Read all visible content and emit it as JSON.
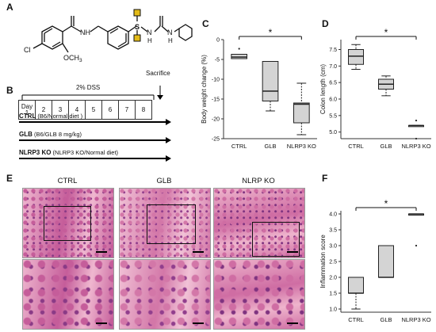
{
  "panels": {
    "a": "A",
    "b": "B",
    "c": "C",
    "d": "D",
    "e": "E",
    "f": "F"
  },
  "structure": {
    "labels": {
      "cl": "Cl",
      "nh": "NH",
      "och3": "OCH",
      "och3_sub": "3",
      "s": "S",
      "nh2": "N",
      "h2": "H",
      "nh3": "N",
      "h3": "H"
    }
  },
  "timeline": {
    "dss_label": "2% DSS",
    "sacrifice_label": "Sacrifice",
    "days": [
      "Day 1",
      "2",
      "3",
      "4",
      "5",
      "6",
      "7",
      "8"
    ],
    "groups": [
      {
        "name": "CTRL",
        "desc": " (B6/Normal diet )"
      },
      {
        "name": "GLB",
        "desc": " (B6/GLB 8 mg/kg)"
      },
      {
        "name": "NLRP3 KO",
        "desc": " (NLRP3 KO/Normal diet)"
      }
    ]
  },
  "histology": {
    "columns": [
      "CTRL",
      "GLB",
      "NLRP KO"
    ]
  },
  "chart_data": [
    {
      "id": "C",
      "type": "box",
      "ylabel": "Body weight change (%)",
      "ylim": [
        -25,
        0
      ],
      "yticks": [
        "0",
        "-5",
        "-10",
        "-15",
        "-20",
        "-25"
      ],
      "categories": [
        "CTRL",
        "GLB",
        "NLRP3 KO"
      ],
      "boxes": [
        {
          "min": -4.8,
          "q1": -4.8,
          "median": -4.4,
          "q3": -3.7,
          "max": -3.7,
          "outliers": [
            -2.3
          ]
        },
        {
          "min": -18,
          "q1": -15.5,
          "median": -13,
          "q3": -5.5,
          "max": -5.5,
          "outliers": []
        },
        {
          "min": -24,
          "q1": -21,
          "median": -16.3,
          "q3": -16,
          "max": -11,
          "outliers": []
        }
      ],
      "significance": {
        "from": 0,
        "to": 2,
        "label": "*"
      }
    },
    {
      "id": "D",
      "type": "box",
      "ylabel": "Colon length (cm)",
      "ylim": [
        4.8,
        7.8
      ],
      "yticks": [
        "7.5",
        "7.0",
        "6.5",
        "6.0",
        "5.5",
        "5.0"
      ],
      "categories": [
        "CTRL",
        "GLB",
        "NLRP3 KO"
      ],
      "boxes": [
        {
          "min": 6.9,
          "q1": 7.05,
          "median": 7.3,
          "q3": 7.5,
          "max": 7.65,
          "outliers": []
        },
        {
          "min": 6.1,
          "q1": 6.3,
          "median": 6.45,
          "q3": 6.6,
          "max": 6.7,
          "outliers": []
        },
        {
          "min": 5.2,
          "q1": 5.2,
          "median": 5.2,
          "q3": 5.2,
          "max": 5.2,
          "outliers": [
            5.35,
            4.8
          ]
        }
      ],
      "significance": {
        "from": 0,
        "to": 2,
        "label": "*"
      }
    },
    {
      "id": "F",
      "type": "box",
      "ylabel": "Inflammation score",
      "ylim": [
        0.9,
        4.1
      ],
      "yticks": [
        "4.0",
        "3.5",
        "3.0",
        "2.5",
        "2.0",
        "1.5",
        "1.0"
      ],
      "categories": [
        "CTRL",
        "GLB",
        "NLRP3 KO"
      ],
      "boxes": [
        {
          "min": 1.0,
          "q1": 1.5,
          "median": 1.5,
          "q3": 2.0,
          "max": 2.0,
          "outliers": []
        },
        {
          "min": 2.0,
          "q1": 2.0,
          "median": 2.0,
          "q3": 3.0,
          "max": 3.0,
          "outliers": []
        },
        {
          "min": 4.0,
          "q1": 4.0,
          "median": 4.0,
          "q3": 4.0,
          "max": 4.0,
          "outliers": [
            3.0
          ]
        }
      ],
      "significance": {
        "from": 0,
        "to": 2,
        "label": "*"
      }
    }
  ],
  "colors": {
    "box_fill": "#d4d4d4",
    "stroke": "#222222",
    "tissue_pink": "#e9a3c2",
    "tissue_purple": "#8a3a86"
  }
}
